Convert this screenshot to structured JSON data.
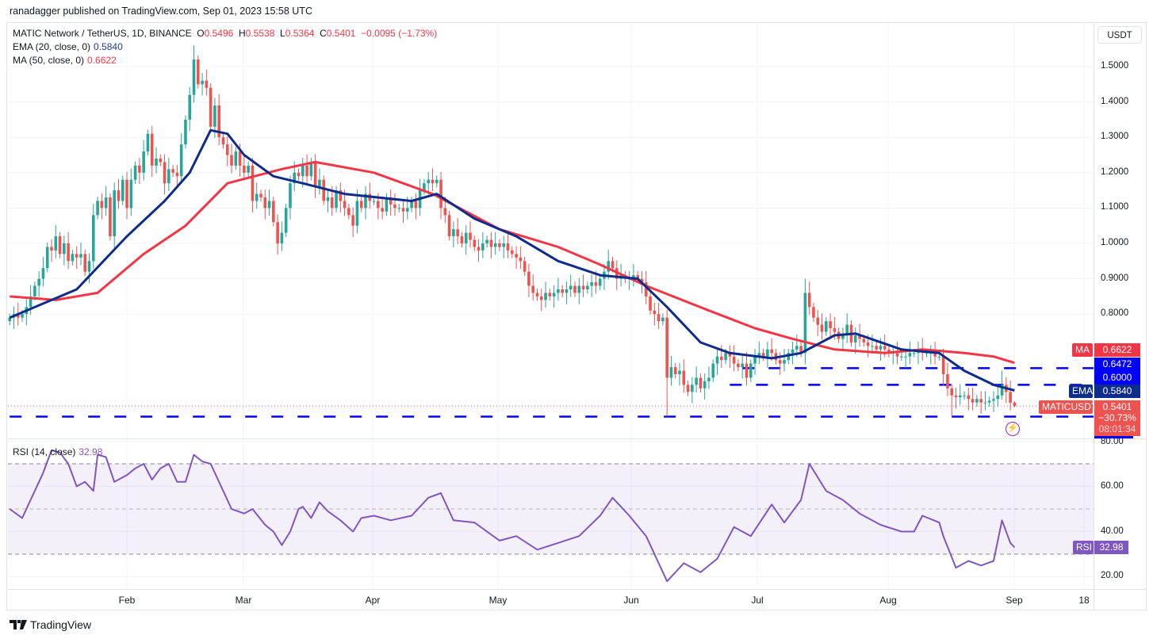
{
  "publisher": "ranadagger published on TradingView.com, Sep 01, 2023 15:58 UTC",
  "symbol": {
    "title": "MATIC Network / TetherUS, 1D, BINANCE",
    "open_label": "O",
    "open": "0.5496",
    "high_label": "H",
    "high": "0.5538",
    "low_label": "L",
    "low": "0.5364",
    "close_label": "C",
    "close": "0.5401",
    "change": "−0.0095 (−1.73%)"
  },
  "indicators": {
    "ema_label": "EMA (20, close, 0)",
    "ema_value": "0.5840",
    "ma_label": "MA (50, close, 0)",
    "ma_value": "0.6622",
    "rsi_label": "RSI (14, close)",
    "rsi_value": "32.98"
  },
  "currency_button": "USDT",
  "price_axis": [
    "1.5000",
    "1.4000",
    "1.3000",
    "1.2000",
    "1.1000",
    "1.0000",
    "0.9000",
    "0.8000"
  ],
  "rsi_axis": [
    "80.00",
    "60.00",
    "40.00",
    "20.00"
  ],
  "time_axis": [
    "Feb",
    "Mar",
    "Apr",
    "May",
    "Jun",
    "Jul",
    "Aug",
    "Sep",
    "18"
  ],
  "tags": {
    "ma": {
      "label": "MA",
      "value": "0.6622"
    },
    "level_1": "0.6472",
    "level_2": "0.6000",
    "ema": {
      "label": "EMA",
      "value": "0.5840"
    },
    "last": {
      "label": "MATICUSDT",
      "value": "0.5401",
      "change": "−30.73%",
      "countdown": "08:01:34"
    },
    "rsi": {
      "label": "RSI",
      "value": "32.98"
    }
  },
  "logo": "TradingView",
  "colors": {
    "up": "#26a69a",
    "down": "#ef5350",
    "ema": "#0d2c8c",
    "ma": "#f23645",
    "levels": "#0000ff",
    "rsi": "#7e57c2"
  },
  "chart_data": {
    "type": "candlestick",
    "interval": "1D",
    "start_date": "2023-01-04",
    "end_date": "2023-09-01",
    "ylim": [
      0.5,
      1.56
    ],
    "first_open": 0.78,
    "closes": [
      0.79,
      0.8,
      0.79,
      0.8,
      0.82,
      0.85,
      0.88,
      0.9,
      0.93,
      0.99,
      0.98,
      1.02,
      0.97,
      1.0,
      0.95,
      0.97,
      0.96,
      0.97,
      0.92,
      0.95,
      1.08,
      1.12,
      1.1,
      1.13,
      1.02,
      1.15,
      1.12,
      1.18,
      1.1,
      1.18,
      1.22,
      1.2,
      1.26,
      1.31,
      1.22,
      1.24,
      1.23,
      1.17,
      1.21,
      1.2,
      1.19,
      1.28,
      1.35,
      1.42,
      1.52,
      1.45,
      1.46,
      1.44,
      1.33,
      1.39,
      1.3,
      1.28,
      1.25,
      1.22,
      1.26,
      1.22,
      1.2,
      1.22,
      1.12,
      1.14,
      1.13,
      1.1,
      1.12,
      1.06,
      1.0,
      1.03,
      1.1,
      1.17,
      1.2,
      1.19,
      1.22,
      1.19,
      1.23,
      1.16,
      1.18,
      1.12,
      1.13,
      1.1,
      1.15,
      1.12,
      1.1,
      1.08,
      1.05,
      1.12,
      1.1,
      1.14,
      1.12,
      1.12,
      1.1,
      1.09,
      1.13,
      1.11,
      1.1,
      1.1,
      1.09,
      1.1,
      1.12,
      1.1,
      1.15,
      1.17,
      1.18,
      1.17,
      1.18,
      1.1,
      1.08,
      1.02,
      1.04,
      1.02,
      1.0,
      1.03,
      1.01,
      0.99,
      0.98,
      1.0,
      1.01,
      0.99,
      1.0,
      0.99,
      1.0,
      0.98,
      0.97,
      0.96,
      0.95,
      0.92,
      0.88,
      0.86,
      0.85,
      0.84,
      0.86,
      0.85,
      0.86,
      0.87,
      0.86,
      0.87,
      0.88,
      0.86,
      0.88,
      0.87,
      0.88,
      0.89,
      0.88,
      0.9,
      0.92,
      0.95,
      0.93,
      0.9,
      0.91,
      0.9,
      0.9,
      0.91,
      0.9,
      0.89,
      0.85,
      0.81,
      0.8,
      0.78,
      0.79,
      0.62,
      0.65,
      0.63,
      0.64,
      0.6,
      0.58,
      0.6,
      0.62,
      0.59,
      0.61,
      0.62,
      0.66,
      0.68,
      0.67,
      0.69,
      0.68,
      0.66,
      0.65,
      0.66,
      0.62,
      0.66,
      0.68,
      0.69,
      0.68,
      0.7,
      0.69,
      0.67,
      0.66,
      0.67,
      0.69,
      0.7,
      0.71,
      0.69,
      0.86,
      0.82,
      0.79,
      0.77,
      0.75,
      0.78,
      0.76,
      0.75,
      0.73,
      0.74,
      0.77,
      0.72,
      0.74,
      0.73,
      0.72,
      0.71,
      0.71,
      0.7,
      0.71,
      0.7,
      0.69,
      0.69,
      0.68,
      0.68,
      0.68,
      0.69,
      0.69,
      0.7,
      0.69,
      0.69,
      0.69,
      0.68,
      0.68,
      0.63,
      0.59,
      0.57,
      0.565,
      0.57,
      0.57,
      0.56,
      0.55,
      0.56,
      0.55,
      0.55,
      0.555,
      0.56,
      0.57,
      0.6,
      0.58,
      0.5496,
      0.5401
    ],
    "notable_extremes": [
      {
        "date": "2023-02-17",
        "high": 1.56
      },
      {
        "date": "2023-07-13",
        "high": 0.9
      },
      {
        "date": "2023-06-10",
        "low": 0.51
      },
      {
        "date": "2023-08-17",
        "low": 0.51
      },
      {
        "date": "2023-08-29",
        "high": 0.64
      },
      {
        "date": "2023-09-01",
        "high": 0.5538,
        "low": 0.5364
      }
    ],
    "ema20": [
      [
        "2023-01-04",
        0.79
      ],
      [
        "2023-01-20",
        0.87
      ],
      [
        "2023-02-01",
        1.02
      ],
      [
        "2023-02-10",
        1.12
      ],
      [
        "2023-02-16",
        1.2
      ],
      [
        "2023-02-21",
        1.32
      ],
      [
        "2023-02-25",
        1.31
      ],
      [
        "2023-03-01",
        1.25
      ],
      [
        "2023-03-08",
        1.19
      ],
      [
        "2023-03-15",
        1.17
      ],
      [
        "2023-03-25",
        1.14
      ],
      [
        "2023-04-10",
        1.12
      ],
      [
        "2023-04-16",
        1.14
      ],
      [
        "2023-04-25",
        1.07
      ],
      [
        "2023-05-05",
        1.02
      ],
      [
        "2023-05-15",
        0.95
      ],
      [
        "2023-05-25",
        0.91
      ],
      [
        "2023-06-03",
        0.9
      ],
      [
        "2023-06-10",
        0.82
      ],
      [
        "2023-06-18",
        0.72
      ],
      [
        "2023-06-25",
        0.69
      ],
      [
        "2023-07-05",
        0.675
      ],
      [
        "2023-07-12",
        0.69
      ],
      [
        "2023-07-20",
        0.74
      ],
      [
        "2023-07-25",
        0.745
      ],
      [
        "2023-08-05",
        0.7
      ],
      [
        "2023-08-14",
        0.69
      ],
      [
        "2023-08-20",
        0.64
      ],
      [
        "2023-08-27",
        0.6
      ],
      [
        "2023-09-01",
        0.584
      ]
    ],
    "ma50": [
      [
        "2023-01-04",
        0.85
      ],
      [
        "2023-01-15",
        0.84
      ],
      [
        "2023-01-25",
        0.86
      ],
      [
        "2023-02-05",
        0.97
      ],
      [
        "2023-02-15",
        1.05
      ],
      [
        "2023-02-25",
        1.17
      ],
      [
        "2023-03-10",
        1.21
      ],
      [
        "2023-03-18",
        1.23
      ],
      [
        "2023-04-01",
        1.2
      ],
      [
        "2023-04-15",
        1.14
      ],
      [
        "2023-05-01",
        1.04
      ],
      [
        "2023-05-15",
        0.99
      ],
      [
        "2023-05-25",
        0.94
      ],
      [
        "2023-06-05",
        0.88
      ],
      [
        "2023-06-20",
        0.81
      ],
      [
        "2023-07-01",
        0.76
      ],
      [
        "2023-07-10",
        0.73
      ],
      [
        "2023-07-20",
        0.7
      ],
      [
        "2023-08-01",
        0.69
      ],
      [
        "2023-08-10",
        0.7
      ],
      [
        "2023-08-20",
        0.69
      ],
      [
        "2023-08-27",
        0.68
      ],
      [
        "2023-09-01",
        0.662
      ]
    ],
    "horizontal_levels": [
      {
        "value": 0.6472,
        "from": "2023-06-28"
      },
      {
        "value": 0.6,
        "from": "2023-06-25"
      },
      {
        "value": 0.51,
        "from": "2023-01-04"
      }
    ],
    "rsi": {
      "ylim": [
        15,
        82
      ],
      "bands": [
        70,
        50,
        30
      ],
      "points": [
        [
          "2023-01-04",
          50
        ],
        [
          "2023-01-07",
          46
        ],
        [
          "2023-01-10",
          58
        ],
        [
          "2023-01-12",
          66
        ],
        [
          "2023-01-14",
          76
        ],
        [
          "2023-01-16",
          75
        ],
        [
          "2023-01-18",
          70
        ],
        [
          "2023-01-20",
          60
        ],
        [
          "2023-01-22",
          62
        ],
        [
          "2023-01-24",
          58
        ],
        [
          "2023-01-25",
          74
        ],
        [
          "2023-01-27",
          73
        ],
        [
          "2023-01-29",
          62
        ],
        [
          "2023-02-01",
          65
        ],
        [
          "2023-02-03",
          68
        ],
        [
          "2023-02-05",
          70
        ],
        [
          "2023-02-07",
          63
        ],
        [
          "2023-02-09",
          68
        ],
        [
          "2023-02-11",
          70
        ],
        [
          "2023-02-13",
          62
        ],
        [
          "2023-02-15",
          62
        ],
        [
          "2023-02-17",
          74
        ],
        [
          "2023-02-19",
          71
        ],
        [
          "2023-02-21",
          70
        ],
        [
          "2023-02-23",
          62
        ],
        [
          "2023-02-26",
          50
        ],
        [
          "2023-03-01",
          48
        ],
        [
          "2023-03-03",
          50
        ],
        [
          "2023-03-06",
          43
        ],
        [
          "2023-03-08",
          40
        ],
        [
          "2023-03-10",
          34
        ],
        [
          "2023-03-12",
          40
        ],
        [
          "2023-03-14",
          50
        ],
        [
          "2023-03-15",
          51
        ],
        [
          "2023-03-17",
          46
        ],
        [
          "2023-03-19",
          53
        ],
        [
          "2023-03-21",
          49
        ],
        [
          "2023-03-24",
          45
        ],
        [
          "2023-03-27",
          40
        ],
        [
          "2023-03-29",
          46
        ],
        [
          "2023-04-01",
          47
        ],
        [
          "2023-04-05",
          45
        ],
        [
          "2023-04-10",
          47
        ],
        [
          "2023-04-14",
          55
        ],
        [
          "2023-04-17",
          57
        ],
        [
          "2023-04-20",
          45
        ],
        [
          "2023-04-25",
          44
        ],
        [
          "2023-05-01",
          36
        ],
        [
          "2023-05-05",
          38
        ],
        [
          "2023-05-10",
          32
        ],
        [
          "2023-05-15",
          35
        ],
        [
          "2023-05-20",
          38
        ],
        [
          "2023-05-25",
          47
        ],
        [
          "2023-05-28",
          55
        ],
        [
          "2023-06-01",
          47
        ],
        [
          "2023-06-05",
          38
        ],
        [
          "2023-06-10",
          18
        ],
        [
          "2023-06-14",
          26
        ],
        [
          "2023-06-18",
          22
        ],
        [
          "2023-06-22",
          28
        ],
        [
          "2023-06-26",
          42
        ],
        [
          "2023-06-30",
          38
        ],
        [
          "2023-07-05",
          52
        ],
        [
          "2023-07-08",
          44
        ],
        [
          "2023-07-12",
          54
        ],
        [
          "2023-07-14",
          70
        ],
        [
          "2023-07-18",
          58
        ],
        [
          "2023-07-22",
          54
        ],
        [
          "2023-07-26",
          48
        ],
        [
          "2023-07-31",
          43
        ],
        [
          "2023-08-05",
          40
        ],
        [
          "2023-08-08",
          40
        ],
        [
          "2023-08-10",
          47
        ],
        [
          "2023-08-14",
          44
        ],
        [
          "2023-08-15",
          38
        ],
        [
          "2023-08-18",
          24
        ],
        [
          "2023-08-21",
          27
        ],
        [
          "2023-08-24",
          25
        ],
        [
          "2023-08-27",
          27
        ],
        [
          "2023-08-29",
          45
        ],
        [
          "2023-08-31",
          35
        ],
        [
          "2023-09-01",
          33
        ]
      ]
    }
  }
}
